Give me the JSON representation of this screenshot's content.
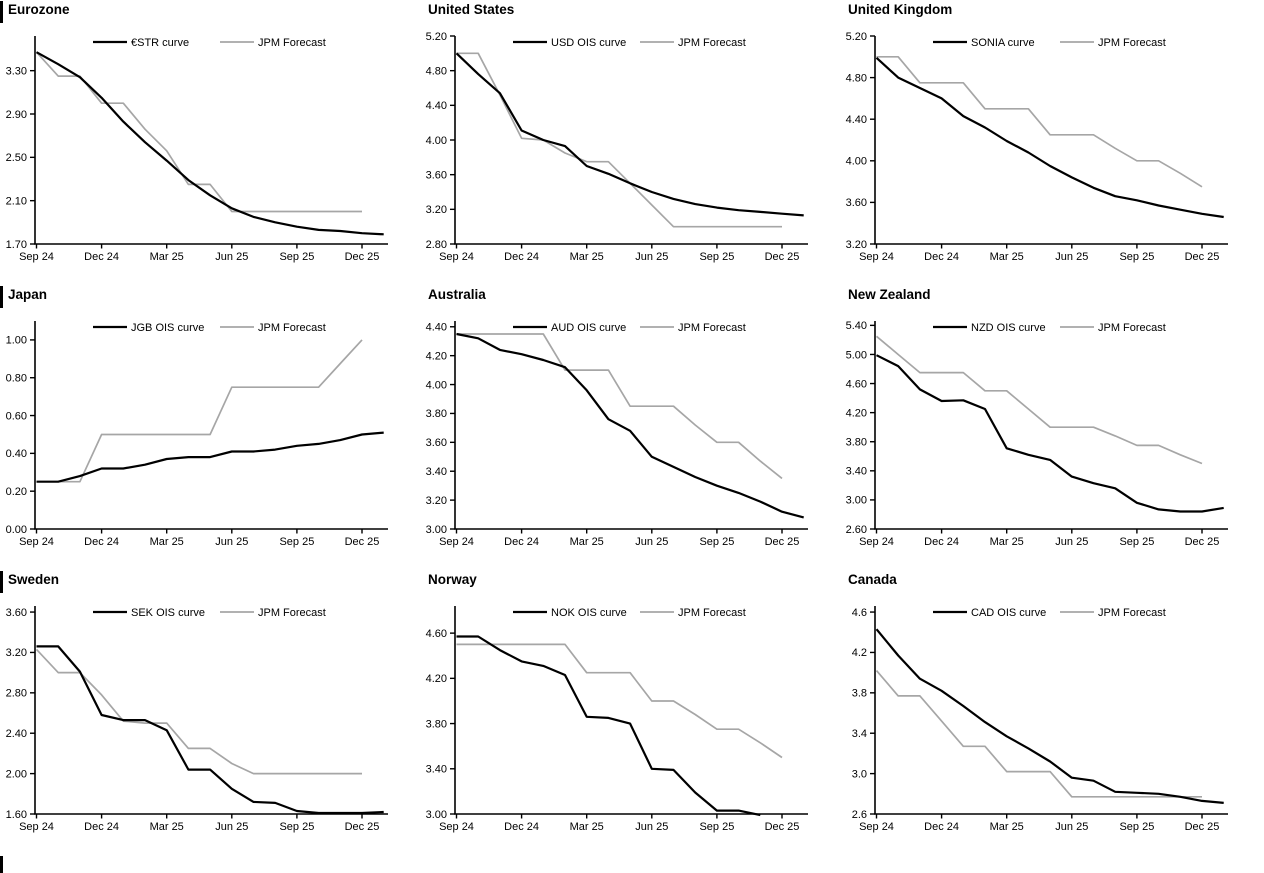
{
  "page": {
    "background": "#ffffff",
    "has_bottom_left_section_marker": true
  },
  "colors": {
    "curve": "#000000",
    "forecast": "#a6a6a6",
    "axis": "#000000"
  },
  "x_months": [
    "Sep 24",
    "Oct 24",
    "Nov 24",
    "Dec 24",
    "Jan 25",
    "Feb 25",
    "Mar 25",
    "Apr 25",
    "May 25",
    "Jun 25",
    "Jul 25",
    "Aug 25",
    "Sep 25",
    "Oct 25",
    "Nov 25",
    "Dec 25"
  ],
  "chart_data": [
    {
      "type": "line",
      "title": "Eurozone",
      "section_bar": true,
      "grid": false,
      "legend_position": "top-inside",
      "x_tick_labels": [
        "Sep 24",
        "Dec 24",
        "Mar 25",
        "Jun 25",
        "Sep 25",
        "Dec 25"
      ],
      "ylim": [
        1.7,
        3.62
      ],
      "y_ticks": [
        "1.70",
        "2.10",
        "2.50",
        "2.90",
        "3.30"
      ],
      "series": [
        {
          "name": "€STR curve",
          "color": "#000000",
          "width": 2.2,
          "values": [
            3.47,
            3.36,
            3.24,
            3.05,
            2.83,
            2.64,
            2.47,
            2.29,
            2.15,
            2.03,
            1.95,
            1.9,
            1.86,
            1.83,
            1.82,
            1.8,
            1.79
          ]
        },
        {
          "name": "JPM Forecast",
          "color": "#a6a6a6",
          "width": 1.7,
          "values": [
            3.47,
            3.25,
            3.25,
            3.0,
            3.0,
            2.76,
            2.56,
            2.25,
            2.25,
            2.0,
            2.0,
            2.0,
            2.0,
            2.0,
            2.0,
            2.0
          ]
        }
      ]
    },
    {
      "type": "line",
      "title": "United States",
      "section_bar": false,
      "grid": false,
      "legend_position": "top-inside",
      "x_tick_labels": [
        "Sep 24",
        "Dec 24",
        "Mar 25",
        "Jun 25",
        "Sep 25",
        "Dec 25"
      ],
      "ylim": [
        2.8,
        5.2
      ],
      "y_ticks": [
        "2.80",
        "3.20",
        "3.60",
        "4.00",
        "4.40",
        "4.80",
        "5.20"
      ],
      "series": [
        {
          "name": "USD OIS curve",
          "color": "#000000",
          "width": 2.2,
          "values": [
            5.0,
            4.76,
            4.54,
            4.11,
            4.0,
            3.93,
            3.7,
            3.61,
            3.5,
            3.4,
            3.32,
            3.26,
            3.22,
            3.19,
            3.17,
            3.15,
            3.13
          ]
        },
        {
          "name": "JPM Forecast",
          "color": "#a6a6a6",
          "width": 1.7,
          "values": [
            5.0,
            5.0,
            4.52,
            4.02,
            4.0,
            3.85,
            3.75,
            3.75,
            3.5,
            3.25,
            3.0,
            3.0,
            3.0,
            3.0,
            3.0,
            3.0
          ]
        }
      ]
    },
    {
      "type": "line",
      "title": "United Kingdom",
      "section_bar": false,
      "grid": false,
      "legend_position": "top-inside",
      "x_tick_labels": [
        "Sep 24",
        "Dec 24",
        "Mar 25",
        "Jun 25",
        "Sep 25",
        "Dec 25"
      ],
      "ylim": [
        3.2,
        5.2
      ],
      "y_ticks": [
        "3.20",
        "3.60",
        "4.00",
        "4.40",
        "4.80",
        "5.20"
      ],
      "series": [
        {
          "name": "SONIA curve",
          "color": "#000000",
          "width": 2.2,
          "values": [
            4.99,
            4.8,
            4.7,
            4.6,
            4.43,
            4.32,
            4.19,
            4.08,
            3.95,
            3.84,
            3.74,
            3.66,
            3.62,
            3.57,
            3.53,
            3.49,
            3.46
          ]
        },
        {
          "name": "JPM Forecast",
          "color": "#a6a6a6",
          "width": 1.7,
          "values": [
            5.0,
            5.0,
            4.75,
            4.75,
            4.75,
            4.5,
            4.5,
            4.5,
            4.25,
            4.25,
            4.25,
            4.12,
            4.0,
            4.0,
            3.88,
            3.75
          ]
        }
      ]
    },
    {
      "type": "line",
      "title": "Japan",
      "section_bar": true,
      "grid": false,
      "legend_position": "top-inside",
      "x_tick_labels": [
        "Sep 24",
        "Dec 24",
        "Mar 25",
        "Jun 25",
        "Sep 25",
        "Dec 25"
      ],
      "ylim": [
        0.0,
        1.1
      ],
      "y_ticks": [
        "0.00",
        "0.20",
        "0.40",
        "0.60",
        "0.80",
        "1.00"
      ],
      "series": [
        {
          "name": "JGB OIS curve",
          "color": "#000000",
          "width": 2.2,
          "values": [
            0.25,
            0.25,
            0.28,
            0.32,
            0.32,
            0.34,
            0.37,
            0.38,
            0.38,
            0.41,
            0.41,
            0.42,
            0.44,
            0.45,
            0.47,
            0.5,
            0.51
          ]
        },
        {
          "name": "JPM Forecast",
          "color": "#a6a6a6",
          "width": 1.7,
          "values": [
            0.25,
            0.25,
            0.25,
            0.5,
            0.5,
            0.5,
            0.5,
            0.5,
            0.5,
            0.75,
            0.75,
            0.75,
            0.75,
            0.75,
            0.875,
            1.0
          ]
        }
      ]
    },
    {
      "type": "line",
      "title": "Australia",
      "section_bar": false,
      "grid": false,
      "legend_position": "top-inside",
      "x_tick_labels": [
        "Sep 24",
        "Dec 24",
        "Mar 25",
        "Jun 25",
        "Sep 25",
        "Dec 25"
      ],
      "ylim": [
        3.0,
        4.44
      ],
      "y_ticks": [
        "3.00",
        "3.20",
        "3.40",
        "3.60",
        "3.80",
        "4.00",
        "4.20",
        "4.40"
      ],
      "series": [
        {
          "name": "AUD OIS curve",
          "color": "#000000",
          "width": 2.2,
          "values": [
            4.35,
            4.32,
            4.24,
            4.21,
            4.17,
            4.12,
            3.96,
            3.76,
            3.68,
            3.5,
            3.43,
            3.36,
            3.3,
            3.25,
            3.19,
            3.12,
            3.08
          ]
        },
        {
          "name": "JPM Forecast",
          "color": "#a6a6a6",
          "width": 1.7,
          "values": [
            4.35,
            4.35,
            4.35,
            4.35,
            4.35,
            4.1,
            4.1,
            4.1,
            3.85,
            3.85,
            3.85,
            3.72,
            3.6,
            3.6,
            3.47,
            3.35
          ]
        }
      ]
    },
    {
      "type": "line",
      "title": "New Zealand",
      "section_bar": false,
      "grid": false,
      "legend_position": "top-inside",
      "x_tick_labels": [
        "Sep 24",
        "Dec 24",
        "Mar 25",
        "Jun 25",
        "Sep 25",
        "Dec 25"
      ],
      "ylim": [
        2.6,
        5.46
      ],
      "y_ticks": [
        "2.60",
        "3.00",
        "3.40",
        "3.80",
        "4.20",
        "4.60",
        "5.00",
        "5.40"
      ],
      "series": [
        {
          "name": "NZD OIS curve",
          "color": "#000000",
          "width": 2.2,
          "values": [
            4.99,
            4.84,
            4.52,
            4.36,
            4.37,
            4.25,
            3.71,
            3.62,
            3.55,
            3.32,
            3.23,
            3.16,
            2.96,
            2.87,
            2.84,
            2.84,
            2.89
          ]
        },
        {
          "name": "JPM Forecast",
          "color": "#a6a6a6",
          "width": 1.7,
          "values": [
            5.25,
            5.0,
            4.75,
            4.75,
            4.75,
            4.5,
            4.5,
            4.25,
            4.0,
            4.0,
            4.0,
            3.88,
            3.75,
            3.75,
            3.62,
            3.5
          ]
        }
      ]
    },
    {
      "type": "line",
      "title": "Sweden",
      "section_bar": true,
      "grid": false,
      "legend_position": "top-inside",
      "x_tick_labels": [
        "Sep 24",
        "Dec 24",
        "Mar 25",
        "Jun 25",
        "Sep 25",
        "Dec 25"
      ],
      "ylim": [
        1.6,
        3.66
      ],
      "y_ticks": [
        "1.60",
        "2.00",
        "2.40",
        "2.80",
        "3.20",
        "3.60"
      ],
      "series": [
        {
          "name": "SEK OIS curve",
          "color": "#000000",
          "width": 2.2,
          "values": [
            3.26,
            3.26,
            3.01,
            2.58,
            2.53,
            2.53,
            2.43,
            2.04,
            2.04,
            1.85,
            1.72,
            1.71,
            1.63,
            1.61,
            1.61,
            1.61,
            1.62
          ]
        },
        {
          "name": "JPM Forecast",
          "color": "#a6a6a6",
          "width": 1.7,
          "values": [
            3.23,
            3.0,
            3.0,
            2.78,
            2.52,
            2.5,
            2.5,
            2.25,
            2.25,
            2.1,
            2.0,
            2.0,
            2.0,
            2.0,
            2.0,
            2.0
          ]
        }
      ]
    },
    {
      "type": "line",
      "title": "Norway",
      "section_bar": false,
      "grid": false,
      "legend_position": "top-inside",
      "x_tick_labels": [
        "Sep 24",
        "Dec 24",
        "Mar 25",
        "Jun 25",
        "Sep 25",
        "Dec 25"
      ],
      "ylim": [
        3.0,
        4.84
      ],
      "y_ticks": [
        "3.00",
        "3.40",
        "3.80",
        "4.20",
        "4.60"
      ],
      "series": [
        {
          "name": "NOK OIS curve",
          "color": "#000000",
          "width": 2.2,
          "values": [
            4.57,
            4.57,
            4.45,
            4.35,
            4.31,
            4.23,
            3.86,
            3.85,
            3.8,
            3.4,
            3.39,
            3.19,
            3.03,
            3.03,
            2.99
          ]
        },
        {
          "name": "JPM Forecast",
          "color": "#a6a6a6",
          "width": 1.7,
          "values": [
            4.5,
            4.5,
            4.5,
            4.5,
            4.5,
            4.5,
            4.25,
            4.25,
            4.25,
            4.0,
            4.0,
            3.88,
            3.75,
            3.75,
            3.63,
            3.5
          ]
        }
      ]
    },
    {
      "type": "line",
      "title": "Canada",
      "section_bar": false,
      "grid": false,
      "legend_position": "top-inside",
      "x_tick_labels": [
        "Sep 24",
        "Dec 24",
        "Mar 25",
        "Jun 25",
        "Sep 25",
        "Dec 25"
      ],
      "ylim": [
        2.6,
        4.66
      ],
      "y_ticks": [
        "2.6",
        "3.0",
        "3.4",
        "3.8",
        "4.2",
        "4.6"
      ],
      "series": [
        {
          "name": "CAD OIS curve",
          "color": "#000000",
          "width": 2.2,
          "values": [
            4.43,
            4.17,
            3.94,
            3.82,
            3.67,
            3.51,
            3.37,
            3.25,
            3.12,
            2.96,
            2.93,
            2.82,
            2.81,
            2.8,
            2.77,
            2.73,
            2.71
          ]
        },
        {
          "name": "JPM Forecast",
          "color": "#a6a6a6",
          "width": 1.7,
          "values": [
            4.02,
            3.77,
            3.77,
            3.52,
            3.27,
            3.27,
            3.02,
            3.02,
            3.02,
            2.77,
            2.77,
            2.77,
            2.77,
            2.77,
            2.77,
            2.77
          ]
        }
      ]
    }
  ]
}
